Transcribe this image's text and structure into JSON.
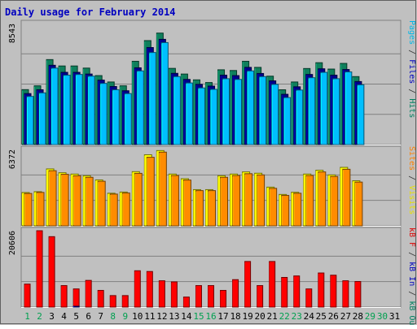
{
  "chart_data": {
    "type": "bar",
    "title": "Daily usage for February 2014",
    "categories": [
      "1",
      "2",
      "3",
      "4",
      "5",
      "6",
      "7",
      "8",
      "9",
      "10",
      "11",
      "12",
      "13",
      "14",
      "15",
      "16",
      "17",
      "18",
      "19",
      "20",
      "21",
      "22",
      "23",
      "24",
      "25",
      "26",
      "27",
      "28",
      "29",
      "30",
      "31"
    ],
    "weekend_days": [
      "1",
      "2",
      "8",
      "9",
      "15",
      "16",
      "22",
      "23",
      "29",
      "30"
    ],
    "panels": [
      {
        "id": "hits-files-pages",
        "ymax_label": "8543",
        "ymax": 8543,
        "side_labels": [
          {
            "text": "Pages",
            "color": "#00b8e8"
          },
          {
            "text": " / ",
            "color": "#333333"
          },
          {
            "text": "Files",
            "color": "#0000c0"
          },
          {
            "text": " / ",
            "color": "#333333"
          },
          {
            "text": "Hits",
            "color": "#008060"
          }
        ],
        "series": [
          {
            "name": "Hits",
            "color": "#0f7f5c",
            "values": [
              3880,
              4150,
              6000,
              5550,
              5550,
              5400,
              4870,
              4420,
              4150,
              5880,
              7340,
              7870,
              5380,
              4980,
              4570,
              4380,
              5280,
              5230,
              5880,
              5450,
              4830,
              3870,
              4420,
              5370,
              5780,
              5330,
              5730,
              4800,
              0,
              0,
              0
            ]
          },
          {
            "name": "Files",
            "color": "#00008b",
            "values": [
              3600,
              3870,
              5600,
              5100,
              5100,
              4980,
              4550,
              4100,
              3800,
              5420,
              6850,
              7430,
              5030,
              4600,
              4250,
              4130,
              4900,
              4870,
              5450,
              5020,
              4500,
              3550,
              4080,
              4950,
              5350,
              4900,
              5300,
              4450,
              0,
              0,
              0
            ]
          },
          {
            "name": "Pages",
            "color": "#00bfff",
            "values": [
              3400,
              3650,
              5400,
              4900,
              4950,
              4830,
              4320,
              3870,
              3600,
              5200,
              6500,
              7200,
              4800,
              4350,
              4000,
              3900,
              4650,
              4600,
              5200,
              4800,
              4250,
              3320,
              3850,
              4720,
              5100,
              4650,
              5130,
              4220,
              0,
              0,
              0
            ]
          }
        ]
      },
      {
        "id": "visits-sites",
        "ymax_label": "6372",
        "ymax": 6372,
        "side_labels": [
          {
            "text": "Sites",
            "color": "#ff8000"
          },
          {
            "text": " / ",
            "color": "#333333"
          },
          {
            "text": "Visits",
            "color": "#e8e000"
          }
        ],
        "series": [
          {
            "name": "Visits",
            "color": "#ffff00",
            "values": [
              2780,
              2850,
              4750,
              4430,
              4320,
              4180,
              3830,
              2720,
              2820,
              4520,
              5930,
              6280,
              4320,
              3930,
              3020,
              3020,
              4180,
              4320,
              4500,
              4390,
              3230,
              2620,
              2800,
              4320,
              4640,
              4250,
              4880,
              3760,
              0,
              0,
              0
            ]
          },
          {
            "name": "Sites",
            "color": "#ff8c00",
            "values": [
              2700,
              2790,
              4600,
              4300,
              4180,
              4050,
              3720,
              2650,
              2740,
              4380,
              5720,
              6150,
              4200,
              3820,
              2940,
              2940,
              4050,
              4200,
              4350,
              4250,
              3130,
              2540,
              2720,
              4200,
              4500,
              4120,
              4720,
              3650,
              0,
              0,
              0
            ]
          }
        ]
      },
      {
        "id": "kbytes",
        "ymax_label": "20606",
        "ymax": 20606,
        "side_labels": [
          {
            "text": "kB F",
            "color": "#e00000"
          },
          {
            "text": " / ",
            "color": "#333333"
          },
          {
            "text": "kB In",
            "color": "#0000c0"
          },
          {
            "text": " / ",
            "color": "#333333"
          },
          {
            "text": "kB Out",
            "color": "#008060"
          }
        ],
        "series": [
          {
            "name": "kB F",
            "color": "#ff0000",
            "values": [
              6200,
              20600,
              19000,
              5800,
              4900,
              7200,
              4500,
              3100,
              3100,
              9800,
              9600,
              7100,
              6800,
              2700,
              5800,
              5800,
              4500,
              7400,
              12300,
              5800,
              12300,
              8000,
              8400,
              4900,
              9200,
              8600,
              7100,
              6900,
              0,
              0,
              0
            ]
          },
          {
            "name": "kB In",
            "color": "#0000c0",
            "values": [
              0,
              0,
              0,
              0,
              200,
              0,
              0,
              0,
              0,
              0,
              0,
              0,
              0,
              0,
              0,
              0,
              0,
              0,
              0,
              0,
              0,
              0,
              0,
              0,
              0,
              0,
              0,
              0,
              0,
              0,
              0
            ]
          },
          {
            "name": "kB Out",
            "color": "#008060",
            "values": [
              0,
              0,
              0,
              0,
              0,
              0,
              0,
              0,
              0,
              0,
              0,
              0,
              0,
              0,
              0,
              0,
              0,
              0,
              0,
              0,
              0,
              0,
              0,
              0,
              0,
              0,
              0,
              0,
              0,
              0,
              0
            ]
          }
        ]
      }
    ],
    "colors": {
      "background": "#c0c0c0",
      "frame_dark": "#808080",
      "frame_light": "#ffffff",
      "grid": "#808080",
      "title": "#0000c0",
      "weekday_label": "#000000",
      "weekend_label": "#00a050"
    }
  }
}
